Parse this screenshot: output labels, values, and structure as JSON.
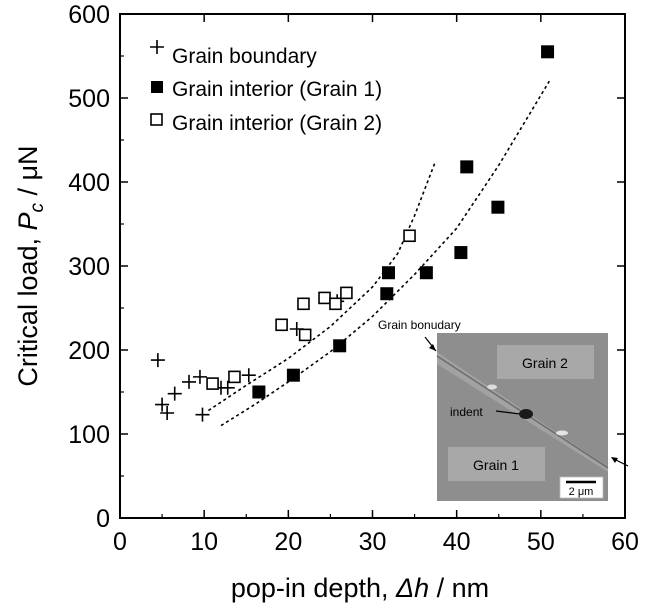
{
  "chart_data": {
    "type": "scatter",
    "xlabel": "pop-in depth, Δh / nm",
    "xlabel_parts": [
      "pop-in depth, ",
      "Δh",
      " / nm"
    ],
    "ylabel": "Critical load, Pc / μN",
    "ylabel_parts": [
      "Critical load, ",
      "P",
      "c",
      " / μN"
    ],
    "xlim": [
      0,
      60
    ],
    "ylim": [
      0,
      600
    ],
    "xticks": [
      0,
      10,
      20,
      30,
      40,
      50,
      60
    ],
    "yticks": [
      0,
      100,
      200,
      300,
      400,
      500,
      600
    ],
    "legend_position": "top-left",
    "series": [
      {
        "name": "Grain boundary",
        "marker": "plus",
        "x": [
          4.5,
          5.0,
          5.6,
          6.5,
          8.2,
          9.5,
          9.8,
          12.0,
          12.8,
          15.3,
          21.0,
          25.8
        ],
        "y": [
          188,
          135,
          125,
          148,
          162,
          168,
          123,
          155,
          155,
          170,
          225,
          258
        ]
      },
      {
        "name": "Grain interior (Grain 1)",
        "marker": "filled-square",
        "x": [
          16.5,
          20.6,
          26.1,
          31.7,
          31.9,
          36.4,
          40.5,
          41.2,
          44.9,
          50.8
        ],
        "y": [
          150,
          170,
          205,
          267,
          292,
          292,
          316,
          418,
          370,
          555
        ]
      },
      {
        "name": "Grain interior (Grain 2)",
        "marker": "open-square",
        "x": [
          11.0,
          13.6,
          19.2,
          21.8,
          22.0,
          24.3,
          25.6,
          26.9,
          34.4
        ],
        "y": [
          160,
          168,
          230,
          255,
          218,
          262,
          255,
          268,
          336
        ]
      }
    ],
    "trend_lines": [
      {
        "x": [
          10.5,
          15,
          20,
          25,
          30,
          33,
          35,
          37.5
        ],
        "y": [
          128,
          158,
          190,
          228,
          275,
          315,
          360,
          425
        ]
      },
      {
        "x": [
          12,
          16,
          20,
          25,
          30,
          35,
          40,
          45,
          51
        ],
        "y": [
          110,
          135,
          162,
          198,
          240,
          290,
          345,
          420,
          520
        ]
      }
    ]
  },
  "inset": {
    "callout_label": "Grain bonudary",
    "grain2_label": "Grain 2",
    "grain1_label": "Grain 1",
    "indent_label": "indent",
    "scale_label": "2 μm"
  }
}
